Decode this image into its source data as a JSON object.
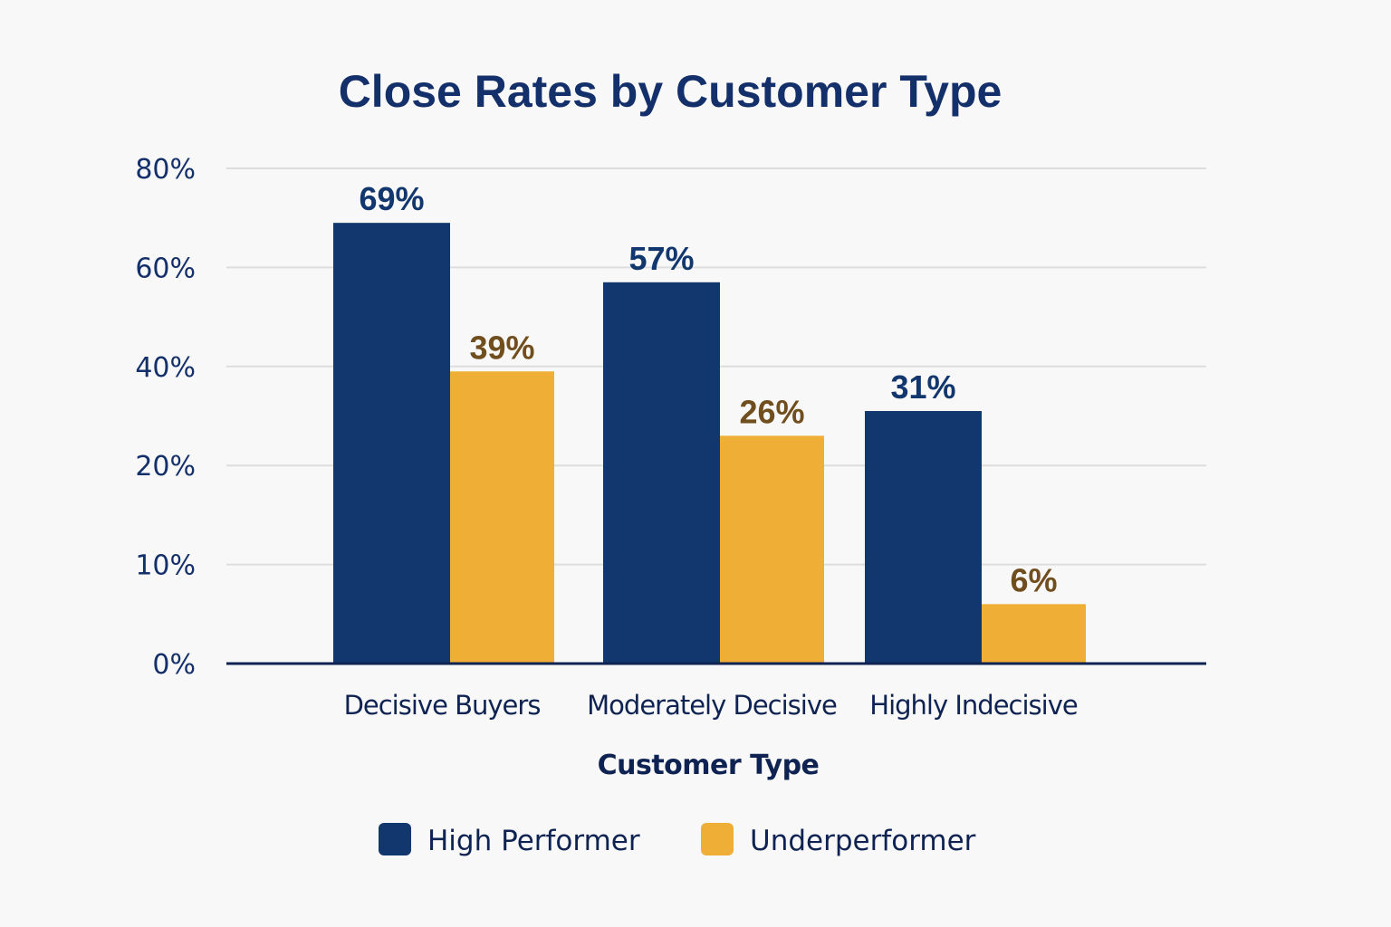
{
  "chart_data": {
    "type": "bar",
    "title": "Close Rates by Customer Type",
    "xlabel": "Customer Type",
    "ylabel": "",
    "categories": [
      "Decisive Buyers",
      "Moderately Decisive",
      "Highly Indecisive"
    ],
    "series": [
      {
        "name": "High Performer",
        "color": "#12376e",
        "label_color": "#12376e",
        "values": [
          69,
          57,
          31
        ],
        "labels": [
          "69%",
          "57%",
          "31%"
        ]
      },
      {
        "name": "Underperformer",
        "color": "#efae35",
        "label_color": "#714e1e",
        "values": [
          39,
          26,
          6
        ],
        "labels": [
          "39%",
          "26%",
          "6%"
        ]
      }
    ],
    "y_ticks": [
      {
        "value": 0,
        "label": "0%"
      },
      {
        "value": 10,
        "label": "10%"
      },
      {
        "value": 20,
        "label": "20%"
      },
      {
        "value": 40,
        "label": "40%"
      },
      {
        "value": 60,
        "label": "60%"
      },
      {
        "value": 80,
        "label": "80%"
      }
    ],
    "ylim": [
      0,
      80
    ],
    "grid": true,
    "legend_position": "bottom-center",
    "colors": {
      "background": "#f8f8f8",
      "grid": "#dddddd",
      "axis": "#0f2352",
      "text": "#14306a"
    }
  }
}
